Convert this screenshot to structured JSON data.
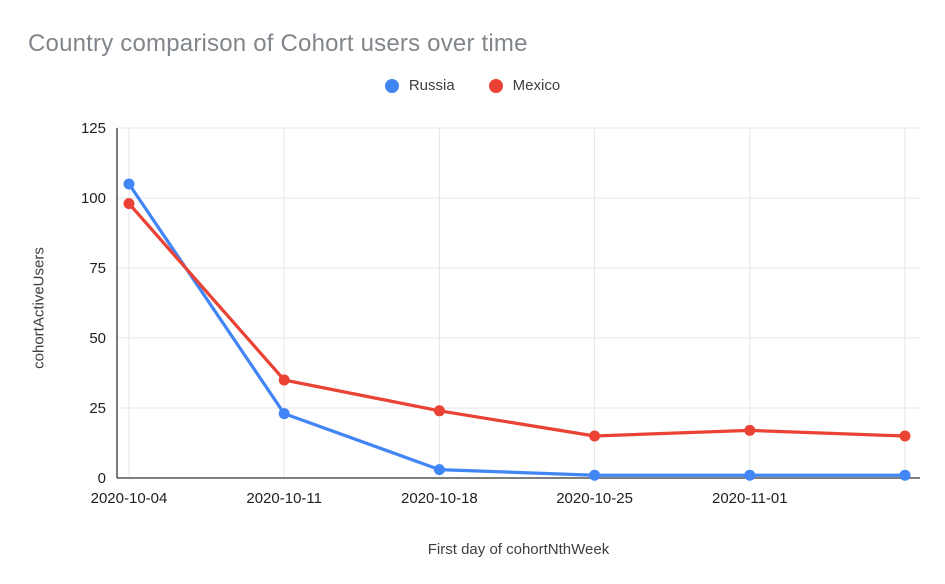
{
  "title": "Country comparison of Cohort users over time",
  "title_color": "#80868b",
  "chart_data": {
    "type": "line",
    "title": "Country comparison of Cohort users over time",
    "xlabel": "First day of cohortNthWeek",
    "ylabel": "cohortActiveUsers",
    "categories": [
      "2020-10-04",
      "2020-10-11",
      "2020-10-18",
      "2020-10-25",
      "2020-11-01",
      ""
    ],
    "series": [
      {
        "name": "Russia",
        "color": "#4285f4",
        "values": [
          105,
          23,
          3,
          1,
          1,
          1
        ]
      },
      {
        "name": "Mexico",
        "color": "#ea4335",
        "values": [
          98,
          35,
          24,
          15,
          17,
          15
        ]
      }
    ],
    "ylim": [
      0,
      125
    ],
    "yticks": [
      0,
      25,
      50,
      75,
      100,
      125
    ],
    "grid": true,
    "legend_position": "top-center",
    "grid_color": "#e6e6e6",
    "axis_line_color": "#333333",
    "tick_label_color": "#202124",
    "marker_radius": 5.5,
    "line_width": 3.25
  }
}
